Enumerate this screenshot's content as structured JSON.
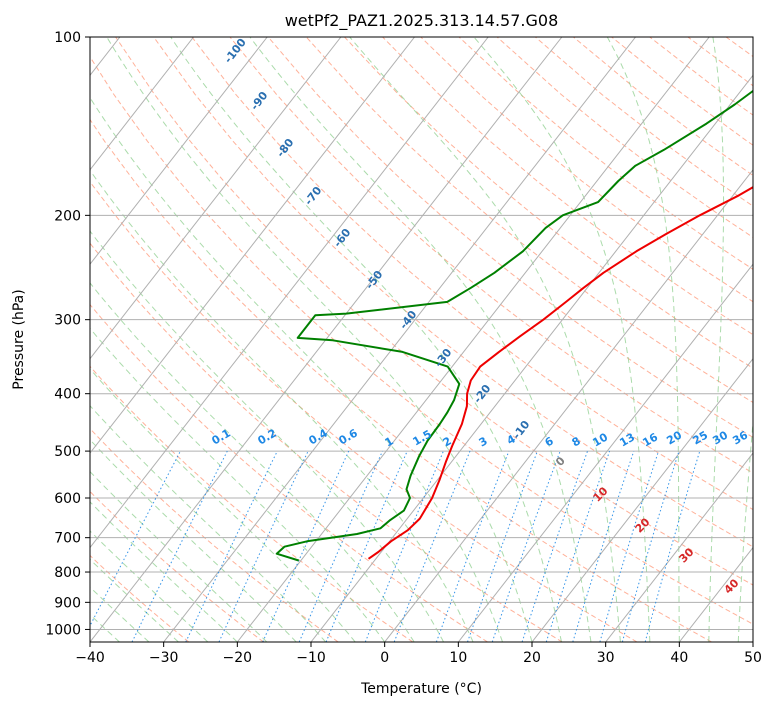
{
  "chart_data": {
    "type": "line",
    "chart_kind": "skew-T log-P diagram",
    "title": "wetPf2_PAZ1.2025.313.14.57.G08",
    "xlabel": "Temperature (°C)",
    "ylabel": "Pressure (hPa)",
    "xlim": [
      -40,
      50
    ],
    "ylim": [
      1050,
      100
    ],
    "y_scale": "log",
    "x_ticks": [
      -40,
      -30,
      -20,
      -10,
      0,
      10,
      20,
      30,
      40,
      50
    ],
    "y_ticks": [
      1000,
      900,
      800,
      700,
      600,
      500,
      400,
      300,
      200,
      100
    ],
    "grid": true,
    "series": [
      {
        "color": "#ee0000",
        "points": [
          [
            -11.0,
            760
          ],
          [
            -10.4,
            740
          ],
          [
            -9.8,
            710
          ],
          [
            -8.7,
            680
          ],
          [
            -8.3,
            650
          ],
          [
            -8.8,
            600
          ],
          [
            -9.7,
            560
          ],
          [
            -10.8,
            520
          ],
          [
            -11.6,
            490
          ],
          [
            -12.6,
            450
          ],
          [
            -13.8,
            420
          ],
          [
            -15.1,
            400
          ],
          [
            -16.0,
            380
          ],
          [
            -16.2,
            360
          ],
          [
            -15.2,
            340
          ],
          [
            -14.0,
            320
          ],
          [
            -12.6,
            300
          ],
          [
            -11.4,
            280
          ],
          [
            -10.5,
            265
          ],
          [
            -9.4,
            250
          ],
          [
            -7.2,
            230
          ],
          [
            -5.0,
            215
          ],
          [
            -2.4,
            200
          ],
          [
            0.8,
            185
          ],
          [
            3.6,
            170
          ],
          [
            8.4,
            150
          ],
          [
            11.6,
            135
          ],
          [
            16.3,
            120
          ],
          [
            18.5,
            112
          ],
          [
            20.6,
            106
          ],
          [
            22.2,
            100
          ]
        ]
      },
      {
        "color": "#008000",
        "points": [
          [
            -20.3,
            765
          ],
          [
            -24.0,
            745
          ],
          [
            -23.7,
            725
          ],
          [
            -21.2,
            710
          ],
          [
            -15.2,
            690
          ],
          [
            -12.6,
            675
          ],
          [
            -12.2,
            655
          ],
          [
            -11.3,
            630
          ],
          [
            -11.8,
            600
          ],
          [
            -13.2,
            580
          ],
          [
            -14.1,
            550
          ],
          [
            -15.0,
            510
          ],
          [
            -15.5,
            480
          ],
          [
            -15.6,
            450
          ],
          [
            -15.8,
            430
          ],
          [
            -16.2,
            410
          ],
          [
            -17.2,
            385
          ],
          [
            -20.6,
            360
          ],
          [
            -28.3,
            340
          ],
          [
            -39.0,
            325
          ],
          [
            -44.0,
            322
          ],
          [
            -44.0,
            295
          ],
          [
            -40.0,
            293
          ],
          [
            -27.5,
            280
          ],
          [
            -25.8,
            265
          ],
          [
            -24.2,
            250
          ],
          [
            -22.6,
            230
          ],
          [
            -22.0,
            210
          ],
          [
            -21.0,
            200
          ],
          [
            -17.6,
            190
          ],
          [
            -17.1,
            175
          ],
          [
            -16.4,
            165
          ],
          [
            -14.2,
            155
          ],
          [
            -11.2,
            140
          ],
          [
            -9.4,
            130
          ],
          [
            -7.8,
            120
          ],
          [
            -7.3,
            110
          ],
          [
            -6.4,
            105
          ],
          [
            -5.5,
            100
          ]
        ]
      }
    ],
    "background_labels": {
      "mixing_ratio": [
        "0.1",
        "0.2",
        "0.4",
        "0.6",
        "1",
        "1.5",
        "2",
        "3",
        "4",
        "6",
        "8",
        "10",
        "13",
        "16",
        "20",
        "25",
        "30",
        "36"
      ],
      "dry_adiabat": [
        "-100",
        "-90",
        "-80",
        "-70",
        "-60",
        "-50",
        "-40",
        "-30",
        "-20",
        "-10"
      ],
      "moist_adiabat": [
        "0",
        "10",
        "20",
        "30",
        "40"
      ]
    },
    "colors": {
      "grid": "#b0b0b0",
      "dry_adiabat": "#ff9e7f",
      "moist_adiabat": "#8fcf8f",
      "mixing_ratio": "#1e88e5",
      "dry_label": "#2a6fb0",
      "wet_label_red": "#d62728",
      "wet_label_gray": "#808080"
    }
  }
}
